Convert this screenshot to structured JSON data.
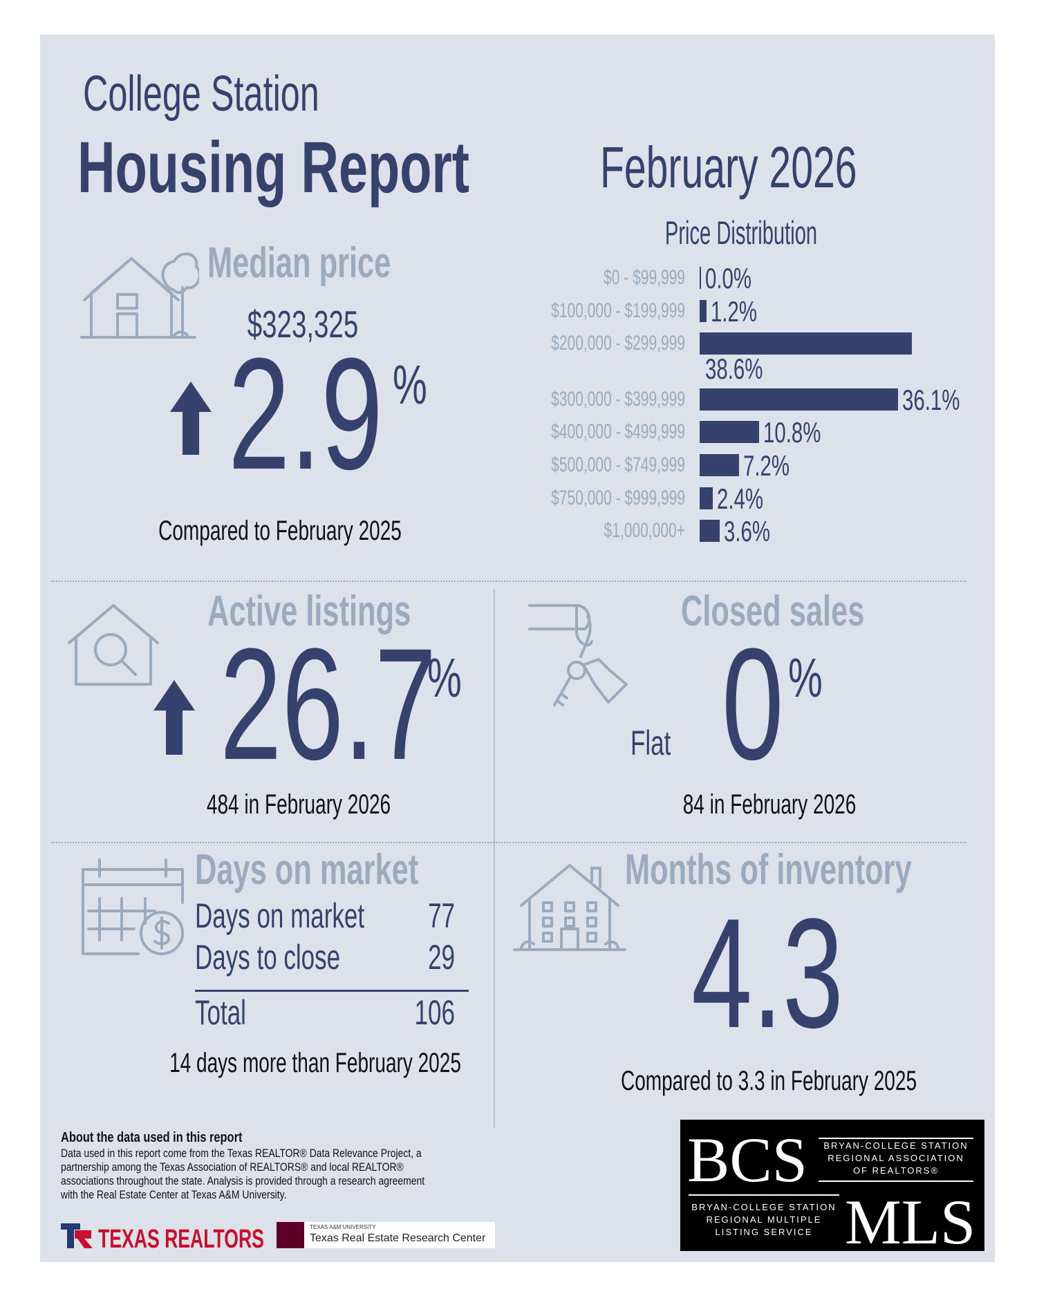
{
  "header": {
    "city": "College Station",
    "title": "Housing Report",
    "period": "February 2026"
  },
  "median_price": {
    "title": "Median price",
    "price": "$323,325",
    "change": "2.9",
    "unit": "%",
    "note": "Compared to February 2025"
  },
  "price_distribution": {
    "title": "Price Distribution",
    "categories": [
      "$0 - $99,999",
      "$100,000 - $199,999",
      "$200,000 - $299,999",
      "$300,000 - $399,999",
      "$400,000 - $499,999",
      "$500,000 - $749,999",
      "$750,000 - $999,999",
      "$1,000,000+"
    ],
    "values": [
      0.0,
      1.2,
      38.6,
      36.1,
      10.8,
      7.2,
      2.4,
      3.6
    ],
    "value_labels": [
      "0.0%",
      "1.2%",
      "38.6%",
      "36.1%",
      "10.8%",
      "7.2%",
      "2.4%",
      "3.6%"
    ]
  },
  "active_listings": {
    "title": "Active listings",
    "change": "26.7",
    "unit": "%",
    "note": "484 in February 2026"
  },
  "closed_sales": {
    "title": "Closed sales",
    "trend": "Flat",
    "change": "0",
    "unit": "%",
    "note": "84 in February 2026"
  },
  "days_on_market": {
    "title": "Days on market",
    "rows": [
      [
        "Days on market",
        77
      ],
      [
        "Days to close",
        29
      ],
      [
        "Total",
        106
      ]
    ],
    "note": "14 days more than February 2025"
  },
  "months_of_inventory": {
    "title": "Months of inventory",
    "value": "4.3",
    "note": "Compared to 3.3 in February 2025"
  },
  "footer": {
    "about_title": "About the data used in this report",
    "about_lines": [
      "Data used in this report come from the Texas REALTOR® Data Relevance Project, a",
      "partnership among the Texas Association of REALTORS® and local REALTOR®",
      "associations throughout the state. Analysis is provided through a research agreement",
      "with the Real Estate Center at Texas A&M University."
    ],
    "texas_realtors": "TEXAS REALTORS",
    "tamu_small": "TEXAS A&M UNIVERSITY",
    "tamu_name": "Texas Real Estate Research Center",
    "bcs": {
      "mark": "BCS",
      "assoc_lines": [
        "BRYAN-COLLEGE STATION",
        "REGIONAL ASSOCIATION",
        "OF REALTORS®"
      ],
      "mls_lines": [
        "BRYAN-COLLEGE STATION",
        "REGIONAL MULTIPLE",
        "LISTING SERVICE"
      ],
      "mls": "MLS"
    }
  }
}
